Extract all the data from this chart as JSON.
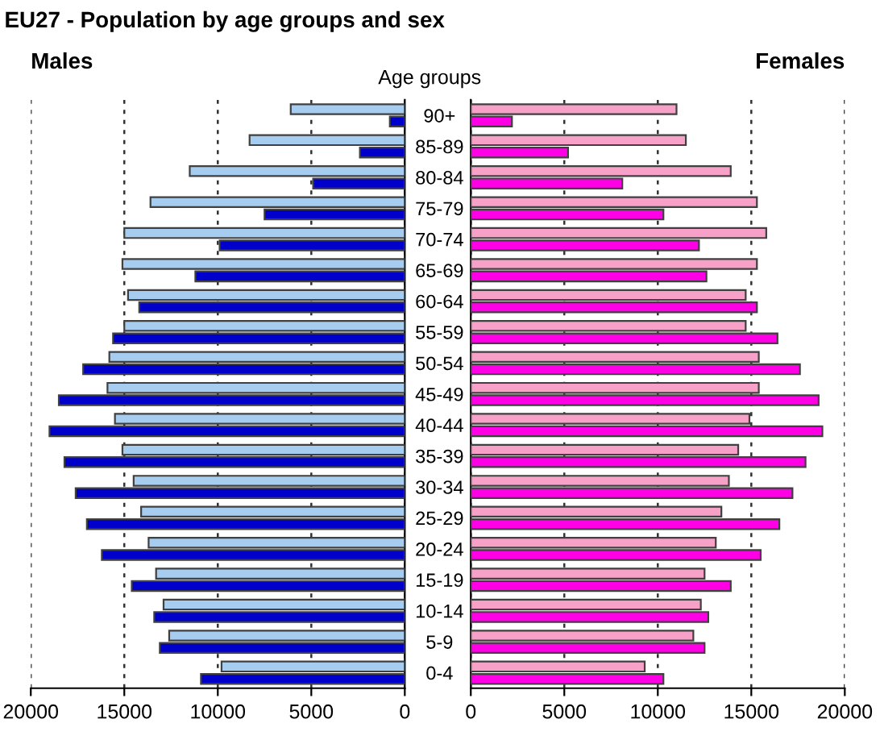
{
  "chart_data": [
    {
      "type": "bar",
      "orientation": "horizontal",
      "title": "EU27 - Population by age groups and sex",
      "subtitle": "Males",
      "series": [
        {
          "color": "#a6cdf0",
          "values": [
            6100,
            8300,
            11500,
            13600,
            15000,
            15100,
            14800,
            15000,
            15800,
            15900,
            15500,
            15100,
            14500,
            14100,
            13700,
            13300,
            12900,
            12600,
            9800
          ]
        },
        {
          "color": "#0000cc",
          "values": [
            800,
            2400,
            4900,
            7500,
            9900,
            11200,
            14200,
            15600,
            17200,
            18500,
            19000,
            18200,
            17600,
            17000,
            16200,
            14600,
            13400,
            13100,
            10900
          ]
        }
      ],
      "xlim": [
        20000,
        0
      ],
      "xticks": [
        20000,
        15000,
        10000,
        5000,
        0
      ],
      "grid": "x",
      "tick_labels": "x"
    },
    {
      "type": "bar",
      "orientation": "horizontal",
      "title": "Females",
      "ylabel": "Age groups",
      "categories": [
        "90+",
        "85-89",
        "80-84",
        "75-79",
        "70-74",
        "65-69",
        "60-64",
        "55-59",
        "50-54",
        "45-49",
        "40-44",
        "35-39",
        "30-34",
        "25-29",
        "20-24",
        "15-19",
        "10-14",
        "5-9",
        "0-4"
      ],
      "series": [
        {
          "color": "#f7a1c8",
          "values": [
            11000,
            11500,
            13900,
            15300,
            15800,
            15300,
            14700,
            14700,
            15400,
            15400,
            14900,
            14300,
            13800,
            13400,
            13100,
            12500,
            12300,
            11900,
            9300
          ]
        },
        {
          "color": "#ff00e6",
          "values": [
            2200,
            5200,
            8100,
            10300,
            12200,
            12600,
            15300,
            16400,
            17600,
            18600,
            18800,
            17900,
            17200,
            16500,
            15500,
            13900,
            12700,
            12500,
            10300
          ]
        }
      ],
      "xlim": [
        0,
        20000
      ],
      "xticks": [
        0,
        5000,
        10000,
        15000,
        20000
      ],
      "grid": "x"
    }
  ]
}
